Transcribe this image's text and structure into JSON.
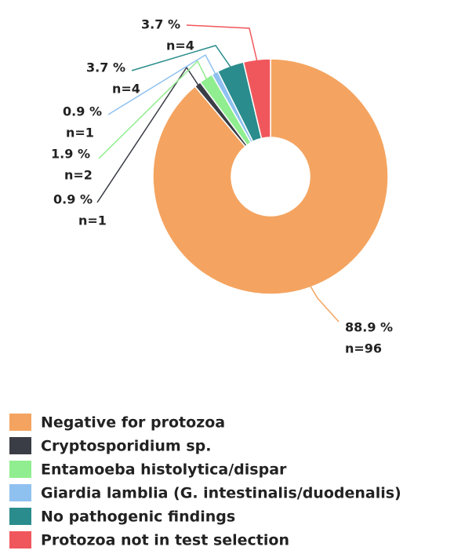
{
  "chart_data": {
    "type": "donut",
    "categories": [
      "Negative for protozoa",
      "Cryptosporidium sp.",
      "Entamoeba histolytica/dispar",
      "Giardia lamblia (G. intestinalis/duodenalis)",
      "No pathogenic findings",
      "Protozoa not in test selection"
    ],
    "values": [
      88.9,
      0.9,
      1.9,
      0.9,
      3.7,
      3.7
    ],
    "value_labels": [
      "88.9 %",
      "0.9 %",
      "1.9 %",
      "0.9 %",
      "3.7 %",
      "3.7 %"
    ],
    "counts": [
      96,
      1,
      2,
      1,
      4,
      4
    ],
    "count_labels": [
      "n=96",
      "n=1",
      "n=2",
      "n=1",
      "n=4",
      "n=4"
    ],
    "colors": [
      "#f4a460",
      "#3a3d45",
      "#90ee90",
      "#8fc1f0",
      "#2a8c8c",
      "#f0575c"
    ],
    "legend": "bottom"
  }
}
